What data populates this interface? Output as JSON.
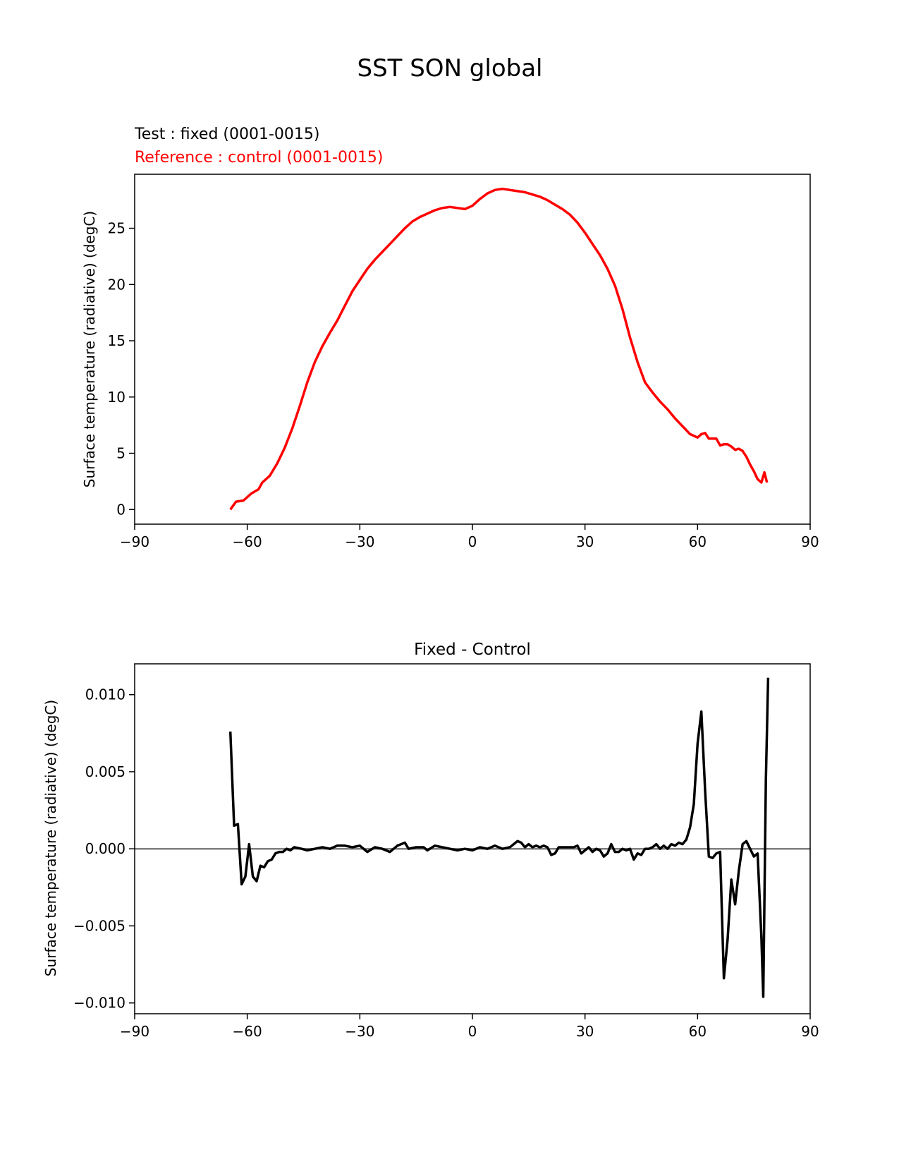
{
  "figure": {
    "title": "SST SON global"
  },
  "chart_data": [
    {
      "type": "line",
      "title_test": "Test : fixed (0001-0015)",
      "title_reference": "Reference : control (0001-0015)",
      "xlabel": "",
      "ylabel": "Surface temperature (radiative) (degC)",
      "xlim": [
        -90,
        90
      ],
      "ylim": [
        -1.3,
        29.8
      ],
      "xticks": [
        -90,
        -60,
        -30,
        0,
        30,
        60,
        90
      ],
      "xtick_labels": [
        "−90",
        "−60",
        "−30",
        "0",
        "30",
        "60",
        "90"
      ],
      "yticks": [
        0,
        5,
        10,
        15,
        20,
        25
      ],
      "ytick_labels": [
        "0",
        "5",
        "10",
        "15",
        "20",
        "25"
      ],
      "grid": false,
      "series": [
        {
          "color": "#ff0000",
          "points": [
            [
              -64.5,
              0.0
            ],
            [
              -63,
              0.7
            ],
            [
              -61,
              0.8
            ],
            [
              -59,
              1.4
            ],
            [
              -57,
              1.8
            ],
            [
              -56,
              2.4
            ],
            [
              -54,
              3.0
            ],
            [
              -52,
              4.1
            ],
            [
              -50,
              5.5
            ],
            [
              -48,
              7.2
            ],
            [
              -46,
              9.2
            ],
            [
              -44,
              11.3
            ],
            [
              -42,
              13.1
            ],
            [
              -40,
              14.5
            ],
            [
              -38,
              15.7
            ],
            [
              -36,
              16.8
            ],
            [
              -34,
              18.1
            ],
            [
              -32,
              19.4
            ],
            [
              -30,
              20.4
            ],
            [
              -28,
              21.4
            ],
            [
              -26,
              22.2
            ],
            [
              -24,
              22.9
            ],
            [
              -22,
              23.6
            ],
            [
              -20,
              24.3
            ],
            [
              -18,
              25.0
            ],
            [
              -16,
              25.6
            ],
            [
              -14,
              26.0
            ],
            [
              -12,
              26.3
            ],
            [
              -10,
              26.6
            ],
            [
              -8,
              26.8
            ],
            [
              -6,
              26.9
            ],
            [
              -4,
              26.8
            ],
            [
              -2,
              26.7
            ],
            [
              0,
              27.0
            ],
            [
              2,
              27.6
            ],
            [
              4,
              28.1
            ],
            [
              6,
              28.4
            ],
            [
              8,
              28.5
            ],
            [
              10,
              28.4
            ],
            [
              12,
              28.3
            ],
            [
              14,
              28.2
            ],
            [
              16,
              28.0
            ],
            [
              18,
              27.8
            ],
            [
              20,
              27.5
            ],
            [
              22,
              27.1
            ],
            [
              24,
              26.7
            ],
            [
              26,
              26.2
            ],
            [
              28,
              25.5
            ],
            [
              30,
              24.6
            ],
            [
              32,
              23.6
            ],
            [
              34,
              22.6
            ],
            [
              36,
              21.4
            ],
            [
              38,
              19.9
            ],
            [
              40,
              17.8
            ],
            [
              42,
              15.3
            ],
            [
              44,
              13.1
            ],
            [
              46,
              11.3
            ],
            [
              48,
              10.4
            ],
            [
              50,
              9.6
            ],
            [
              52,
              8.9
            ],
            [
              54,
              8.1
            ],
            [
              56,
              7.4
            ],
            [
              58,
              6.7
            ],
            [
              60,
              6.4
            ],
            [
              61,
              6.7
            ],
            [
              62,
              6.8
            ],
            [
              63,
              6.3
            ],
            [
              65,
              6.3
            ],
            [
              66,
              5.7
            ],
            [
              67,
              5.8
            ],
            [
              68,
              5.8
            ],
            [
              69,
              5.6
            ],
            [
              70,
              5.3
            ],
            [
              71,
              5.4
            ],
            [
              72,
              5.2
            ],
            [
              73,
              4.7
            ],
            [
              74,
              4.0
            ],
            [
              75,
              3.4
            ],
            [
              76,
              2.7
            ],
            [
              77,
              2.4
            ],
            [
              77.8,
              3.3
            ],
            [
              78.5,
              2.4
            ]
          ]
        }
      ]
    },
    {
      "type": "line",
      "title": "Fixed - Control",
      "xlabel": "",
      "ylabel": "Surface temperature (radiative) (degC)",
      "xlim": [
        -90,
        90
      ],
      "ylim": [
        -0.0107,
        0.012
      ],
      "xticks": [
        -90,
        -60,
        -30,
        0,
        30,
        60,
        90
      ],
      "xtick_labels": [
        "−90",
        "−60",
        "−30",
        "0",
        "30",
        "60",
        "90"
      ],
      "yticks": [
        0.01,
        0.005,
        0.0,
        -0.005,
        -0.01
      ],
      "ytick_labels": [
        "0.010",
        "0.005",
        "0.000",
        "−0.005",
        "−0.010"
      ],
      "grid": false,
      "zero_line_color": "#808080",
      "series": [
        {
          "color": "#000000",
          "points": [
            [
              -64.5,
              0.0076
            ],
            [
              -63.5,
              0.0015
            ],
            [
              -62.5,
              0.0016
            ],
            [
              -61.5,
              -0.0023
            ],
            [
              -60.5,
              -0.0018
            ],
            [
              -59.5,
              0.0003
            ],
            [
              -58.5,
              -0.0018
            ],
            [
              -57.5,
              -0.0021
            ],
            [
              -56.5,
              -0.0011
            ],
            [
              -55.5,
              -0.0012
            ],
            [
              -54.5,
              -0.0008
            ],
            [
              -53.5,
              -0.0007
            ],
            [
              -52.5,
              -0.0003
            ],
            [
              -51.5,
              -0.0002
            ],
            [
              -50.5,
              -0.0002
            ],
            [
              -49.5,
              0.0
            ],
            [
              -48.5,
              -0.0001
            ],
            [
              -47.5,
              0.0001
            ],
            [
              -45.5,
              0.0
            ],
            [
              -44,
              -0.0001
            ],
            [
              -42,
              0.0
            ],
            [
              -40,
              0.0001
            ],
            [
              -38,
              0.0
            ],
            [
              -36,
              0.0002
            ],
            [
              -34,
              0.0002
            ],
            [
              -32,
              0.0001
            ],
            [
              -30,
              0.0002
            ],
            [
              -28,
              -0.0002
            ],
            [
              -26,
              0.0001
            ],
            [
              -24,
              0.0
            ],
            [
              -22,
              -0.0002
            ],
            [
              -20,
              0.0002
            ],
            [
              -18,
              0.0004
            ],
            [
              -17,
              0.0
            ],
            [
              -15,
              0.0001
            ],
            [
              -13,
              0.0001
            ],
            [
              -12,
              -0.0001
            ],
            [
              -10,
              0.0002
            ],
            [
              -8,
              0.0001
            ],
            [
              -6,
              0.0
            ],
            [
              -4,
              -0.0001
            ],
            [
              -2,
              0.0
            ],
            [
              0,
              -0.0001
            ],
            [
              2,
              0.0001
            ],
            [
              4,
              0.0
            ],
            [
              6,
              0.0002
            ],
            [
              8,
              0.0
            ],
            [
              10,
              0.0001
            ],
            [
              12,
              0.0005
            ],
            [
              13,
              0.0004
            ],
            [
              14,
              0.0001
            ],
            [
              15,
              0.0003
            ],
            [
              16,
              0.0001
            ],
            [
              17,
              0.0002
            ],
            [
              18,
              0.0001
            ],
            [
              19,
              0.0002
            ],
            [
              20,
              0.0001
            ],
            [
              21,
              -0.0004
            ],
            [
              22,
              -0.0003
            ],
            [
              23,
              0.0001
            ],
            [
              25,
              0.0001
            ],
            [
              27,
              0.0001
            ],
            [
              28,
              0.0002
            ],
            [
              29,
              -0.0003
            ],
            [
              30,
              -0.0001
            ],
            [
              31,
              0.0001
            ],
            [
              32,
              -0.0002
            ],
            [
              33,
              0.0
            ],
            [
              34,
              -0.0001
            ],
            [
              35,
              -0.0005
            ],
            [
              36,
              -0.0003
            ],
            [
              37,
              0.0003
            ],
            [
              38,
              -0.0002
            ],
            [
              39,
              -0.0002
            ],
            [
              40,
              0.0
            ],
            [
              41,
              -0.0001
            ],
            [
              42,
              0.0
            ],
            [
              43,
              -0.0007
            ],
            [
              44,
              -0.0003
            ],
            [
              45,
              -0.0004
            ],
            [
              46,
              0.0
            ],
            [
              47,
              0.0
            ],
            [
              48,
              0.0001
            ],
            [
              49,
              0.0003
            ],
            [
              50,
              0.0
            ],
            [
              51,
              0.0002
            ],
            [
              52,
              0.0
            ],
            [
              53,
              0.0003
            ],
            [
              54,
              0.0002
            ],
            [
              55,
              0.0004
            ],
            [
              56,
              0.0003
            ],
            [
              57,
              0.0006
            ],
            [
              58,
              0.0014
            ],
            [
              59,
              0.0029
            ],
            [
              60,
              0.0068
            ],
            [
              61,
              0.0089
            ],
            [
              62,
              0.0038
            ],
            [
              63,
              -0.0005
            ],
            [
              64,
              -0.0006
            ],
            [
              65,
              -0.0003
            ],
            [
              66,
              -0.0002
            ],
            [
              67,
              -0.0084
            ],
            [
              68,
              -0.0059
            ],
            [
              69,
              -0.002
            ],
            [
              70,
              -0.0036
            ],
            [
              71,
              -0.0014
            ],
            [
              72,
              0.0003
            ],
            [
              73,
              0.0005
            ],
            [
              74,
              0.0
            ],
            [
              75,
              -0.0005
            ],
            [
              76,
              -0.0003
            ],
            [
              77,
              -0.0057
            ],
            [
              77.5,
              -0.0096
            ],
            [
              78.2,
              0.0045
            ],
            [
              78.8,
              0.0111
            ]
          ]
        }
      ]
    }
  ]
}
